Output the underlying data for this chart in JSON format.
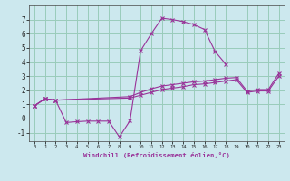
{
  "background_color": "#cce8ee",
  "grid_color": "#99ccbb",
  "line_color": "#993399",
  "xlabel": "Windchill (Refroidissement éolien,°C)",
  "xlim": [
    -0.5,
    23.5
  ],
  "ylim": [
    -1.6,
    8.0
  ],
  "xticks": [
    0,
    1,
    2,
    3,
    4,
    5,
    6,
    7,
    8,
    9,
    10,
    11,
    12,
    13,
    14,
    15,
    16,
    17,
    18,
    19,
    20,
    21,
    22,
    23
  ],
  "yticks": [
    -1,
    0,
    1,
    2,
    3,
    4,
    5,
    6,
    7
  ],
  "series": [
    {
      "x": [
        0,
        1,
        2,
        9,
        10,
        11,
        12,
        13,
        14,
        15,
        16,
        17,
        18,
        19,
        20,
        21,
        22,
        23
      ],
      "y": [
        0.9,
        1.4,
        1.3,
        1.55,
        1.85,
        2.1,
        2.3,
        2.4,
        2.5,
        2.6,
        2.65,
        2.75,
        2.85,
        2.9,
        1.95,
        2.05,
        2.05,
        3.2
      ]
    },
    {
      "x": [
        0,
        1,
        2,
        9,
        10,
        11,
        12,
        13,
        14,
        15,
        16,
        17,
        18,
        19,
        20,
        21,
        22,
        23
      ],
      "y": [
        0.9,
        1.4,
        1.3,
        1.45,
        1.65,
        1.85,
        2.05,
        2.15,
        2.25,
        2.4,
        2.45,
        2.55,
        2.65,
        2.75,
        1.85,
        1.95,
        1.95,
        3.0
      ]
    },
    {
      "x": [
        0,
        1,
        2,
        3,
        4,
        5,
        6,
        7,
        8,
        9,
        10,
        11,
        12,
        13,
        14,
        15,
        16,
        17,
        18
      ],
      "y": [
        0.9,
        1.4,
        1.3,
        -0.28,
        -0.22,
        -0.18,
        -0.18,
        -0.18,
        -1.3,
        -0.15,
        4.8,
        6.0,
        7.1,
        7.0,
        6.85,
        6.65,
        6.3,
        4.75,
        3.85
      ]
    }
  ]
}
